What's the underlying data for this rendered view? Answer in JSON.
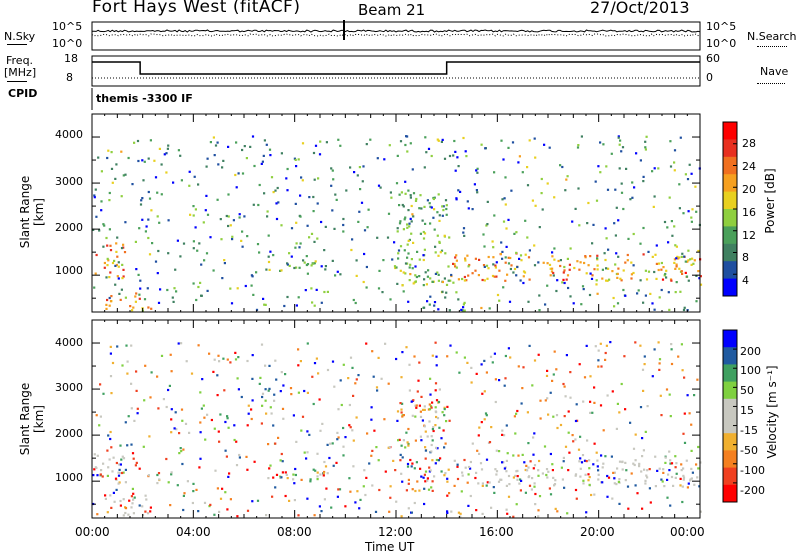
{
  "header": {
    "station": "Fort Hays West (fitACF)",
    "beam": "Beam 21",
    "date": "27/Oct/2013"
  },
  "aux_panels": {
    "nsky_label": "N.Sky",
    "nsky_ticks": [
      "10^5",
      "10^0"
    ],
    "nsearch_label": "N.Search",
    "nsearch_ticks": [
      "10^5",
      "10^0"
    ],
    "freq_label_1": "Freq.",
    "freq_label_2": "[MHz]",
    "freq_ticks": [
      "18",
      "8"
    ],
    "nave_label": "Nave",
    "nave_ticks": [
      "60",
      "0"
    ],
    "cpid_label": "CPID",
    "cpid_text": "themis -3300 IF"
  },
  "chart_data": [
    {
      "type": "heatmap",
      "name": "power-panel",
      "ylabel": "Slant Range [km]",
      "xlabel": "",
      "ylim": [
        200,
        4500
      ],
      "y_ticks": [
        "4000",
        "3000",
        "2000",
        "1000"
      ],
      "y_tick_values": [
        4000,
        3000,
        2000,
        1000
      ],
      "colorbar_label": "Power [dB]",
      "colorbar_ticks": [
        "28",
        "24",
        "20",
        "16",
        "12",
        "8",
        "4"
      ],
      "colorbar_range": [
        0,
        32
      ],
      "colors": [
        "#0000ff",
        "#1f4fa0",
        "#3f8060",
        "#4aa05a",
        "#8fcf3f",
        "#e8d020",
        "#f6a020",
        "#f07020",
        "#e83020",
        "#ff0000"
      ],
      "bands": [
        {
          "t0": 0.0,
          "t1": 1.3,
          "r0": 950,
          "r1": 1750,
          "level": 0.85
        },
        {
          "t0": 0.5,
          "t1": 2.5,
          "r0": 250,
          "r1": 650,
          "level": 0.9
        },
        {
          "t0": 14.0,
          "t1": 24.0,
          "r0": 900,
          "r1": 1500,
          "level": 0.85
        },
        {
          "t0": 6.8,
          "t1": 9.2,
          "r0": 1050,
          "r1": 1350,
          "level": 0.45
        },
        {
          "t0": 12.0,
          "t1": 14.0,
          "r0": 800,
          "r1": 2800,
          "level": 0.5
        }
      ]
    },
    {
      "type": "heatmap",
      "name": "velocity-panel",
      "ylabel": "Slant Range [km]",
      "xlabel": "Time UT",
      "ylim": [
        200,
        4500
      ],
      "y_ticks": [
        "4000",
        "3000",
        "2000",
        "1000"
      ],
      "y_tick_values": [
        4000,
        3000,
        2000,
        1000
      ],
      "x_ticks": [
        "00:00",
        "04:00",
        "08:00",
        "12:00",
        "16:00",
        "20:00",
        "00:00"
      ],
      "x_tick_values": [
        0,
        4,
        8,
        12,
        16,
        20,
        24
      ],
      "xlim": [
        0,
        24
      ],
      "colorbar_label": "Velocity [m s⁻¹]",
      "colorbar_ticks": [
        "200",
        "100",
        "50",
        "15",
        "-15",
        "-50",
        "-100",
        "-200"
      ],
      "colors": [
        "#ff0000",
        "#f04020",
        "#f58020",
        "#f0b030",
        "#c8c8c0",
        "#c8c8c0",
        "#7fd040",
        "#3fa060",
        "#205aa0",
        "#0000ff"
      ]
    }
  ]
}
